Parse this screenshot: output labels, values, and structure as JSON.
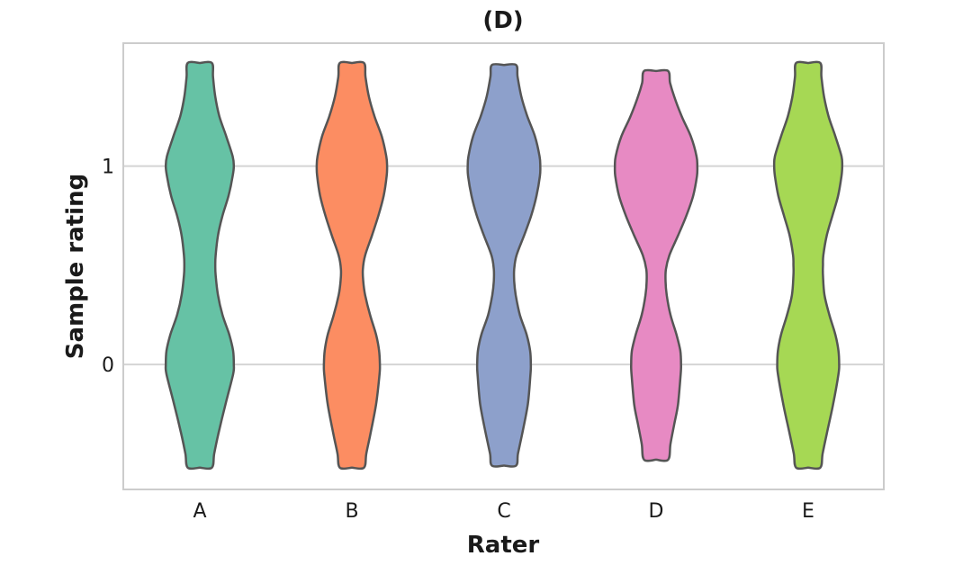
{
  "chart_data": {
    "type": "violin",
    "title": "(D)",
    "xlabel": "Rater",
    "ylabel": "Sample rating",
    "categories": [
      "A",
      "B",
      "C",
      "D",
      "E"
    ],
    "colors": [
      "#66c2a5",
      "#fc8d62",
      "#8da0cb",
      "#e78ac3",
      "#a6d854"
    ],
    "outline_color": "#555555",
    "ylim": [
      -0.63,
      1.62
    ],
    "yticks": [
      0,
      1
    ],
    "ytick_labels": [
      "0",
      "1"
    ],
    "grid": true,
    "series": [
      {
        "name": "A",
        "ymin": -0.52,
        "ymax": 1.52,
        "profile": [
          [
            -0.52,
            0.02
          ],
          [
            -0.45,
            0.08
          ],
          [
            -0.35,
            0.19
          ],
          [
            -0.2,
            0.38
          ],
          [
            -0.05,
            0.58
          ],
          [
            0.0,
            0.6
          ],
          [
            0.07,
            0.58
          ],
          [
            0.15,
            0.48
          ],
          [
            0.25,
            0.3
          ],
          [
            0.35,
            0.18
          ],
          [
            0.45,
            0.12
          ],
          [
            0.5,
            0.11
          ],
          [
            0.55,
            0.12
          ],
          [
            0.65,
            0.18
          ],
          [
            0.75,
            0.3
          ],
          [
            0.85,
            0.46
          ],
          [
            0.95,
            0.57
          ],
          [
            1.0,
            0.6
          ],
          [
            1.05,
            0.57
          ],
          [
            1.15,
            0.4
          ],
          [
            1.25,
            0.22
          ],
          [
            1.35,
            0.11
          ],
          [
            1.45,
            0.05
          ],
          [
            1.52,
            0.02
          ]
        ]
      },
      {
        "name": "B",
        "ymin": -0.52,
        "ymax": 1.52,
        "profile": [
          [
            -0.52,
            0.02
          ],
          [
            -0.45,
            0.08
          ],
          [
            -0.35,
            0.19
          ],
          [
            -0.2,
            0.34
          ],
          [
            -0.05,
            0.43
          ],
          [
            0.0,
            0.44
          ],
          [
            0.07,
            0.42
          ],
          [
            0.15,
            0.34
          ],
          [
            0.25,
            0.18
          ],
          [
            0.35,
            0.05
          ],
          [
            0.42,
            0.0
          ],
          [
            0.48,
            -0.01
          ],
          [
            0.55,
            0.05
          ],
          [
            0.65,
            0.23
          ],
          [
            0.75,
            0.4
          ],
          [
            0.85,
            0.54
          ],
          [
            0.95,
            0.62
          ],
          [
            1.0,
            0.63
          ],
          [
            1.05,
            0.61
          ],
          [
            1.15,
            0.49
          ],
          [
            1.25,
            0.3
          ],
          [
            1.35,
            0.15
          ],
          [
            1.45,
            0.06
          ],
          [
            1.52,
            0.02
          ]
        ]
      },
      {
        "name": "C",
        "ymin": -0.51,
        "ymax": 1.51,
        "profile": [
          [
            -0.51,
            0.02
          ],
          [
            -0.45,
            0.07
          ],
          [
            -0.35,
            0.18
          ],
          [
            -0.2,
            0.33
          ],
          [
            -0.05,
            0.4
          ],
          [
            0.0,
            0.41
          ],
          [
            0.07,
            0.39
          ],
          [
            0.15,
            0.3
          ],
          [
            0.25,
            0.12
          ],
          [
            0.35,
            0.01
          ],
          [
            0.42,
            -0.03
          ],
          [
            0.48,
            -0.03
          ],
          [
            0.55,
            0.03
          ],
          [
            0.65,
            0.23
          ],
          [
            0.75,
            0.42
          ],
          [
            0.85,
            0.56
          ],
          [
            0.95,
            0.65
          ],
          [
            1.0,
            0.66
          ],
          [
            1.05,
            0.64
          ],
          [
            1.15,
            0.52
          ],
          [
            1.25,
            0.32
          ],
          [
            1.35,
            0.16
          ],
          [
            1.45,
            0.06
          ],
          [
            1.51,
            0.02
          ]
        ]
      },
      {
        "name": "D",
        "ymin": -0.48,
        "ymax": 1.48,
        "profile": [
          [
            -0.48,
            0.02
          ],
          [
            -0.4,
            0.08
          ],
          [
            -0.3,
            0.18
          ],
          [
            -0.2,
            0.28
          ],
          [
            -0.05,
            0.35
          ],
          [
            0.0,
            0.36
          ],
          [
            0.07,
            0.34
          ],
          [
            0.15,
            0.24
          ],
          [
            0.25,
            0.08
          ],
          [
            0.35,
            -0.02
          ],
          [
            0.42,
            -0.05
          ],
          [
            0.48,
            -0.04
          ],
          [
            0.55,
            0.05
          ],
          [
            0.65,
            0.28
          ],
          [
            0.75,
            0.5
          ],
          [
            0.85,
            0.68
          ],
          [
            0.95,
            0.78
          ],
          [
            1.0,
            0.79
          ],
          [
            1.05,
            0.77
          ],
          [
            1.15,
            0.62
          ],
          [
            1.25,
            0.38
          ],
          [
            1.35,
            0.18
          ],
          [
            1.42,
            0.07
          ],
          [
            1.48,
            0.02
          ]
        ]
      },
      {
        "name": "E",
        "ymin": -0.52,
        "ymax": 1.52,
        "profile": [
          [
            -0.52,
            0.02
          ],
          [
            -0.45,
            0.08
          ],
          [
            -0.35,
            0.19
          ],
          [
            -0.2,
            0.36
          ],
          [
            -0.05,
            0.5
          ],
          [
            0.0,
            0.52
          ],
          [
            0.07,
            0.5
          ],
          [
            0.15,
            0.42
          ],
          [
            0.25,
            0.26
          ],
          [
            0.35,
            0.13
          ],
          [
            0.45,
            0.09
          ],
          [
            0.5,
            0.09
          ],
          [
            0.55,
            0.1
          ],
          [
            0.65,
            0.19
          ],
          [
            0.75,
            0.34
          ],
          [
            0.85,
            0.49
          ],
          [
            0.95,
            0.58
          ],
          [
            1.0,
            0.6
          ],
          [
            1.05,
            0.58
          ],
          [
            1.15,
            0.42
          ],
          [
            1.25,
            0.24
          ],
          [
            1.35,
            0.12
          ],
          [
            1.45,
            0.05
          ],
          [
            1.52,
            0.02
          ]
        ]
      }
    ]
  }
}
